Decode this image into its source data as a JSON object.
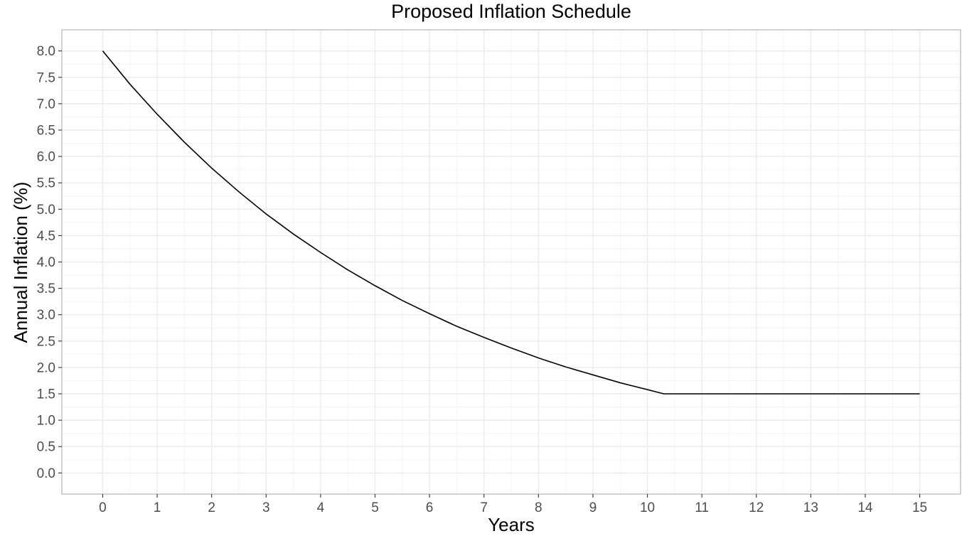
{
  "chart_data": {
    "type": "line",
    "title": "Proposed Inflation Schedule",
    "xlabel": "Years",
    "ylabel": "Annual Inflation (%)",
    "xlim": [
      -0.75,
      15.75
    ],
    "ylim": [
      -0.4,
      8.4
    ],
    "x_ticks": [
      "0",
      "1",
      "2",
      "3",
      "4",
      "5",
      "6",
      "7",
      "8",
      "9",
      "10",
      "11",
      "12",
      "13",
      "14",
      "15"
    ],
    "y_ticks": [
      "0.0",
      "0.5",
      "1.0",
      "1.5",
      "2.0",
      "2.5",
      "3.0",
      "3.5",
      "4.0",
      "4.5",
      "5.0",
      "5.5",
      "6.0",
      "6.5",
      "7.0",
      "7.5",
      "8.0"
    ],
    "grid": true,
    "legend": "none",
    "series": [
      {
        "color": "#000000",
        "x": [
          0,
          0.5,
          1,
          1.5,
          2,
          2.5,
          3,
          3.5,
          4,
          4.5,
          5,
          5.5,
          6,
          6.5,
          7,
          7.5,
          8,
          8.5,
          9,
          9.5,
          10,
          10.3,
          11,
          12,
          13,
          14,
          15
        ],
        "y": [
          8.0,
          7.37,
          6.8,
          6.27,
          5.78,
          5.33,
          4.91,
          4.53,
          4.18,
          3.85,
          3.55,
          3.27,
          3.02,
          2.78,
          2.57,
          2.37,
          2.18,
          2.01,
          1.86,
          1.71,
          1.58,
          1.5,
          1.5,
          1.5,
          1.5,
          1.5,
          1.5
        ]
      }
    ]
  }
}
